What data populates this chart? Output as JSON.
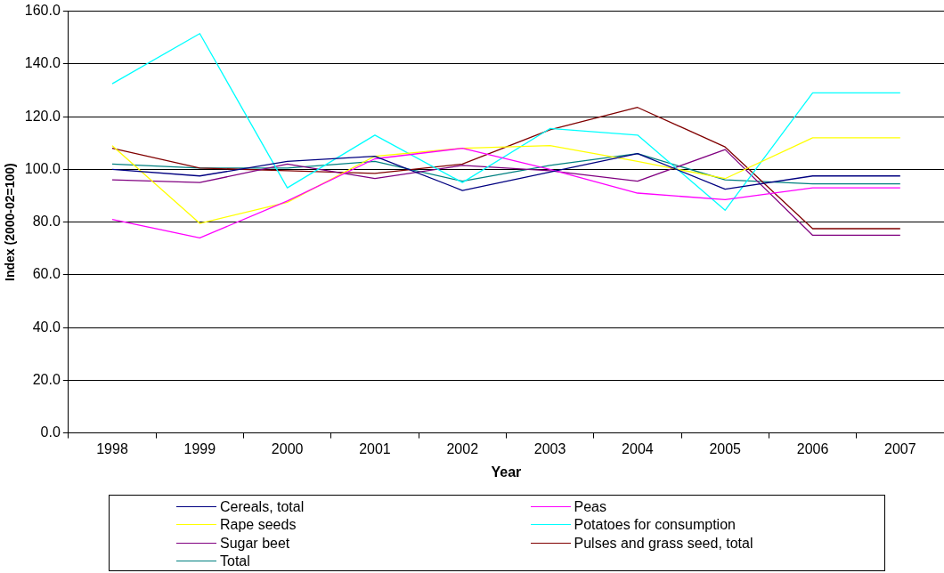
{
  "chart_data": {
    "type": "line",
    "xlabel": "Year",
    "ylabel": "Index (2000-02=100)",
    "categories": [
      "1998",
      "1999",
      "2000",
      "2001",
      "2002",
      "2003",
      "2004",
      "2005",
      "2006",
      "2007"
    ],
    "ylim": [
      0,
      160
    ],
    "yticks": [
      {
        "value": 0,
        "label": "0.0"
      },
      {
        "value": 20,
        "label": "20.0"
      },
      {
        "value": 40,
        "label": "40.0"
      },
      {
        "value": 60,
        "label": "60.0"
      },
      {
        "value": 80,
        "label": "80.0"
      },
      {
        "value": 100,
        "label": "100.0"
      },
      {
        "value": 120,
        "label": "120.0"
      },
      {
        "value": 140,
        "label": "140.0"
      },
      {
        "value": 160,
        "label": "160.0"
      }
    ],
    "grid": "y",
    "legend": "bottom",
    "marker": "none",
    "line_style": "solid",
    "series": [
      {
        "name": "Cereals, total",
        "color": "#000080",
        "values": [
          100,
          97.5,
          103,
          105,
          92,
          99,
          106,
          92.5,
          97.5,
          97.5
        ]
      },
      {
        "name": "Peas",
        "color": "#ff00ff",
        "values": [
          81,
          74,
          88,
          104,
          108,
          100,
          91,
          88.5,
          93,
          93
        ]
      },
      {
        "name": "Rape seeds",
        "color": "#ffff00",
        "values": [
          109,
          79.5,
          87.5,
          105,
          108,
          109,
          103,
          96.5,
          112,
          112
        ]
      },
      {
        "name": "Potatoes for consumption",
        "color": "#00ffff",
        "values": [
          132.5,
          151.5,
          93,
          113,
          95,
          115.5,
          113,
          84.5,
          129,
          129
        ]
      },
      {
        "name": "Sugar beet",
        "color": "#800080",
        "values": [
          96,
          95,
          102,
          96.5,
          101.5,
          99.5,
          95.5,
          107.5,
          75,
          75
        ]
      },
      {
        "name": "Pulses and grass seed, total",
        "color": "#800000",
        "values": [
          108,
          100.5,
          99.5,
          98.5,
          102,
          115,
          123.5,
          108.5,
          77.5,
          77.5
        ]
      },
      {
        "name": "Total",
        "color": "#008080",
        "values": [
          102,
          100.5,
          100.5,
          103,
          95.5,
          101.5,
          106,
          96,
          94.5,
          94.5
        ]
      }
    ]
  }
}
